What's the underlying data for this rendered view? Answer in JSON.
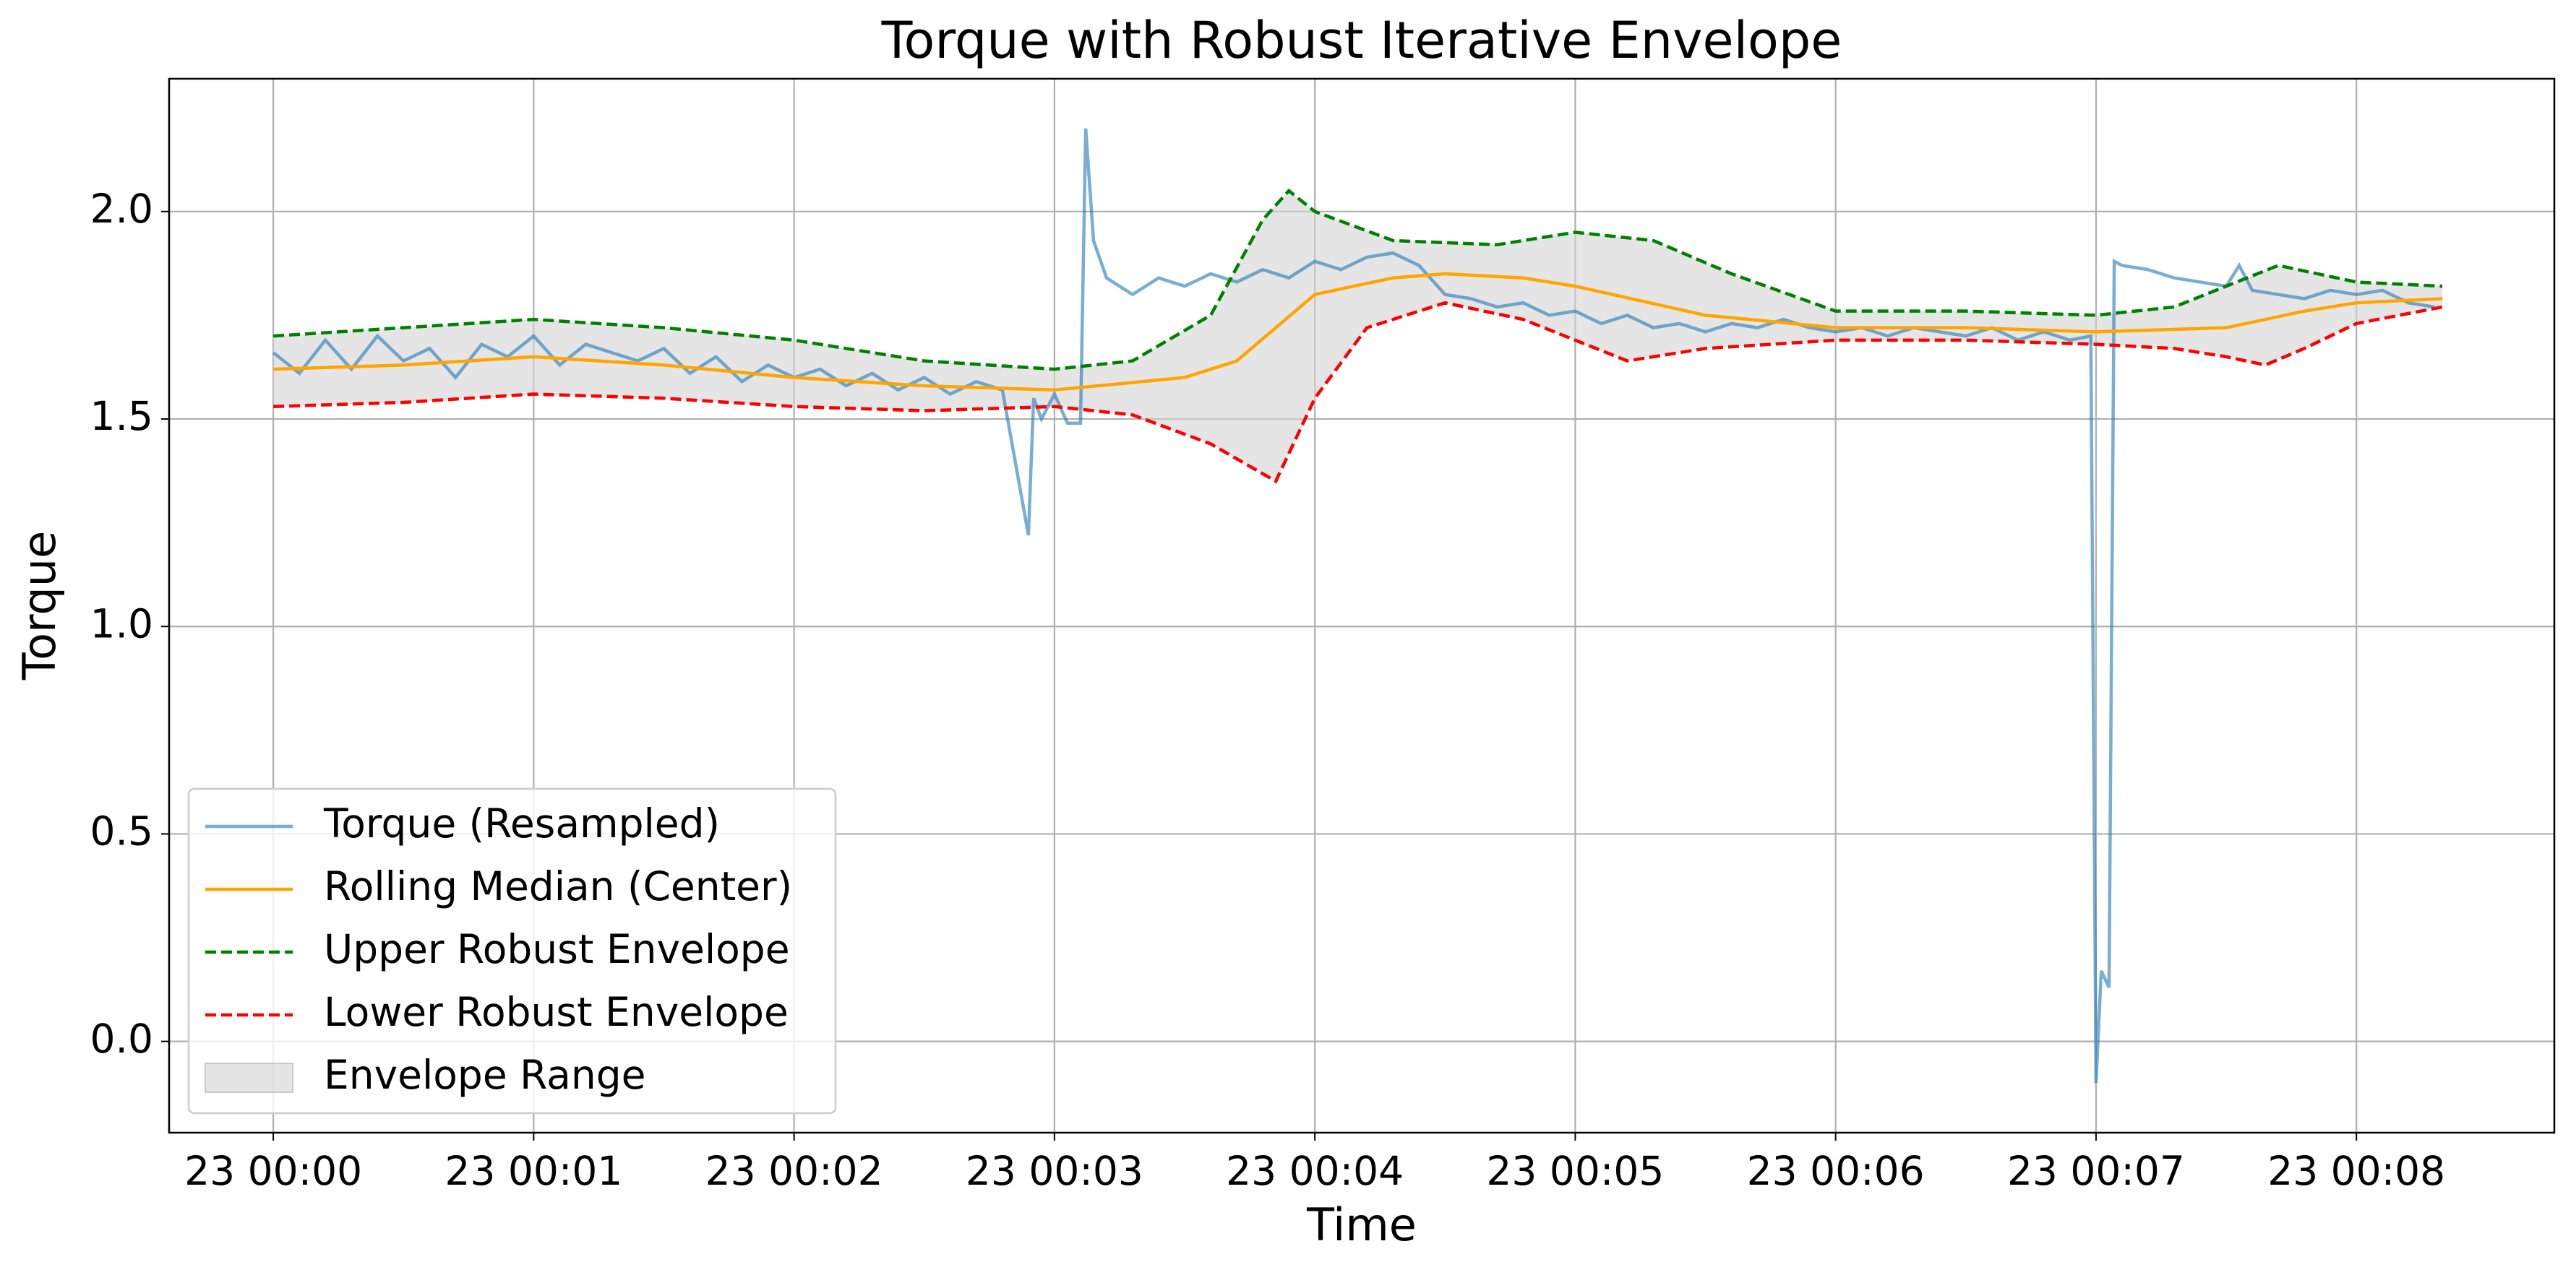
{
  "chart_data": {
    "type": "line",
    "title": "Torque with Robust Iterative Envelope",
    "xlabel": "Time",
    "ylabel": "Torque",
    "xlim": [
      -0.4,
      8.76
    ],
    "ylim": [
      -0.22,
      2.32
    ],
    "xticks": [
      {
        "value": 0,
        "label": "23 00:00"
      },
      {
        "value": 1,
        "label": "23 00:01"
      },
      {
        "value": 2,
        "label": "23 00:02"
      },
      {
        "value": 3,
        "label": "23 00:03"
      },
      {
        "value": 4,
        "label": "23 00:04"
      },
      {
        "value": 5,
        "label": "23 00:05"
      },
      {
        "value": 6,
        "label": "23 00:06"
      },
      {
        "value": 7,
        "label": "23 00:07"
      },
      {
        "value": 8,
        "label": "23 00:08"
      }
    ],
    "yticks": [
      {
        "value": 0,
        "label": "0.0"
      },
      0.5,
      {
        "value": 1,
        "label": "1.0"
      },
      1.5,
      {
        "value": 2,
        "label": "2.0"
      }
    ],
    "grid": true,
    "legend": "lower left",
    "series": [
      {
        "name": "Torque (Resampled)",
        "color": "#1f77b4",
        "alpha": 0.6,
        "dash": false,
        "x": [
          0,
          0.1,
          0.2,
          0.3,
          0.4,
          0.5,
          0.6,
          0.7,
          0.8,
          0.9,
          1,
          1.1,
          1.2,
          1.3,
          1.4,
          1.5,
          1.6,
          1.7,
          1.8,
          1.9,
          2,
          2.1,
          2.2,
          2.3,
          2.4,
          2.5,
          2.6,
          2.7,
          2.8,
          2.9,
          2.92,
          2.95,
          3,
          3.05,
          3.1,
          3.12,
          3.15,
          3.2,
          3.3,
          3.4,
          3.5,
          3.6,
          3.7,
          3.8,
          3.9,
          4,
          4.1,
          4.2,
          4.3,
          4.4,
          4.5,
          4.6,
          4.7,
          4.8,
          4.9,
          5,
          5.1,
          5.2,
          5.3,
          5.4,
          5.5,
          5.6,
          5.7,
          5.8,
          5.9,
          6,
          6.1,
          6.2,
          6.3,
          6.4,
          6.5,
          6.6,
          6.7,
          6.8,
          6.9,
          6.98,
          7,
          7.02,
          7.05,
          7.07,
          7.1,
          7.2,
          7.3,
          7.4,
          7.5,
          7.55,
          7.6,
          7.7,
          7.8,
          7.9,
          8,
          8.1,
          8.2,
          8.3
        ],
        "values": [
          1.66,
          1.61,
          1.69,
          1.62,
          1.7,
          1.64,
          1.67,
          1.6,
          1.68,
          1.65,
          1.7,
          1.63,
          1.68,
          1.66,
          1.64,
          1.67,
          1.61,
          1.65,
          1.59,
          1.63,
          1.6,
          1.62,
          1.58,
          1.61,
          1.57,
          1.6,
          1.56,
          1.59,
          1.57,
          1.22,
          1.55,
          1.5,
          1.56,
          1.49,
          1.49,
          2.2,
          1.93,
          1.84,
          1.8,
          1.84,
          1.82,
          1.85,
          1.83,
          1.86,
          1.84,
          1.88,
          1.86,
          1.89,
          1.9,
          1.87,
          1.8,
          1.79,
          1.77,
          1.78,
          1.75,
          1.76,
          1.73,
          1.75,
          1.72,
          1.73,
          1.71,
          1.73,
          1.72,
          1.74,
          1.72,
          1.71,
          1.72,
          1.7,
          1.72,
          1.71,
          1.7,
          1.72,
          1.69,
          1.71,
          1.69,
          1.7,
          -0.1,
          0.17,
          0.13,
          1.88,
          1.87,
          1.86,
          1.84,
          1.83,
          1.82,
          1.87,
          1.81,
          1.8,
          1.79,
          1.81,
          1.8,
          1.81,
          1.78,
          1.77
        ]
      },
      {
        "name": "Rolling Median (Center)",
        "color": "#ffa500",
        "alpha": 1,
        "dash": false,
        "x": [
          0,
          0.5,
          1,
          1.5,
          2,
          2.5,
          3,
          3.5,
          3.7,
          4,
          4.3,
          4.5,
          4.8,
          5,
          5.5,
          6,
          6.5,
          7,
          7.5,
          7.8,
          8,
          8.33
        ],
        "values": [
          1.62,
          1.63,
          1.65,
          1.63,
          1.6,
          1.58,
          1.57,
          1.6,
          1.64,
          1.8,
          1.84,
          1.85,
          1.84,
          1.82,
          1.75,
          1.72,
          1.72,
          1.71,
          1.72,
          1.76,
          1.78,
          1.79
        ]
      },
      {
        "name": "Upper Robust Envelope",
        "color": "#008000",
        "alpha": 1,
        "dash": true,
        "x": [
          0,
          0.5,
          1,
          1.5,
          2,
          2.5,
          3,
          3.3,
          3.6,
          3.8,
          3.9,
          4,
          4.3,
          4.7,
          5,
          5.3,
          5.6,
          6,
          6.5,
          7,
          7.3,
          7.5,
          7.7,
          8,
          8.33
        ],
        "values": [
          1.7,
          1.72,
          1.74,
          1.72,
          1.69,
          1.64,
          1.62,
          1.64,
          1.75,
          1.98,
          2.05,
          2.0,
          1.93,
          1.92,
          1.95,
          1.93,
          1.85,
          1.76,
          1.76,
          1.75,
          1.77,
          1.82,
          1.87,
          1.83,
          1.82
        ]
      },
      {
        "name": "Lower Robust Envelope",
        "color": "#ff0000",
        "alpha": 1,
        "dash": true,
        "x": [
          0,
          0.5,
          1,
          1.5,
          2,
          2.5,
          3,
          3.3,
          3.6,
          3.85,
          4,
          4.2,
          4.5,
          4.8,
          5,
          5.2,
          5.5,
          6,
          6.5,
          7,
          7.3,
          7.5,
          7.65,
          7.8,
          8,
          8.33
        ],
        "values": [
          1.53,
          1.54,
          1.56,
          1.55,
          1.53,
          1.52,
          1.53,
          1.51,
          1.44,
          1.35,
          1.55,
          1.72,
          1.78,
          1.74,
          1.69,
          1.64,
          1.67,
          1.69,
          1.69,
          1.68,
          1.67,
          1.65,
          1.63,
          1.67,
          1.73,
          1.77
        ]
      }
    ],
    "fill": {
      "name": "Envelope Range",
      "color": "#d3d3d3",
      "alpha": 0.6
    }
  }
}
